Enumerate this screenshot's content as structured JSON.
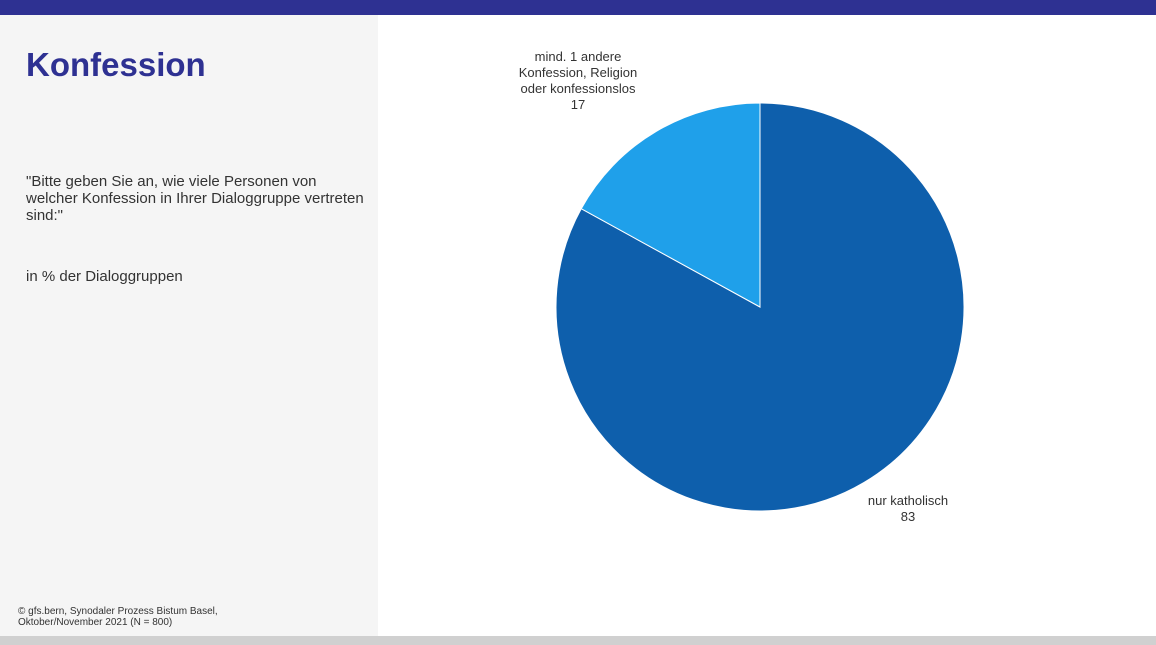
{
  "slide": {
    "title": "Konfession",
    "question": "\"Bitte geben Sie an, wie viele Personen von welcher Konfession in Ihrer Dialoggruppe vertreten sind:\"",
    "unit": "in % der Dialoggruppen",
    "source_line1": "©  gfs.bern, Synodaler Prozess Bistum Basel,",
    "source_line2": "Oktober/November 2021 (N = 800)"
  },
  "colors": {
    "top_bar": "#2e3192",
    "title": "#2e3192",
    "panel": "#f5f5f5",
    "bottom_bar": "#d0d0d0"
  },
  "chart_data": {
    "type": "pie",
    "slices": [
      {
        "label_lines": [
          "nur katholisch"
        ],
        "value": 83,
        "value_label": "83",
        "color": "#0e5fac"
      },
      {
        "label_lines": [
          "mind. 1 andere",
          "Konfession, Religion",
          "oder konfessionslos"
        ],
        "value": 17,
        "value_label": "17",
        "color": "#1fa0ea"
      }
    ],
    "start_angle_deg": 0,
    "direction": "clockwise"
  }
}
